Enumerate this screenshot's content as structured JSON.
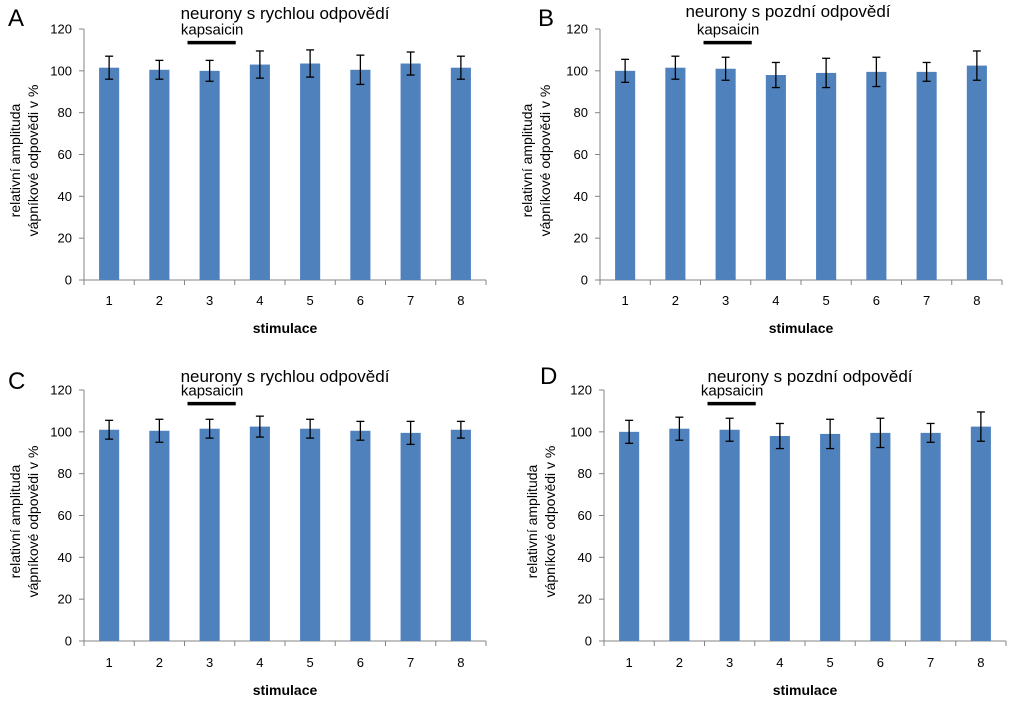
{
  "figure": {
    "bar_color": "#4F81BD",
    "axis_color": "#868686",
    "error_color": "#000000"
  },
  "chart_data": [
    {
      "letter": "A",
      "type": "bar",
      "title": "neurony s rychlou odpovědí",
      "xlabel": "stimulace",
      "ylabel_line1": "relativní amplituda",
      "ylabel_line2": "vápníkové odpovědi v  %",
      "annotation": "kapsaicin",
      "annotation_category": "3",
      "ylim": [
        0,
        120
      ],
      "yticks": [
        0,
        20,
        40,
        60,
        80,
        100,
        120
      ],
      "ytick_labels": [
        "0",
        "20",
        "40",
        "60",
        "80",
        "100",
        "120"
      ],
      "categories": [
        "1",
        "2",
        "3",
        "4",
        "5",
        "6",
        "7",
        "8"
      ],
      "values": [
        101.5,
        100.5,
        100,
        103,
        103.5,
        100.5,
        103.5,
        101.5
      ],
      "errors": [
        5.5,
        4.5,
        5,
        6.5,
        6.5,
        7,
        5.5,
        5.5
      ]
    },
    {
      "letter": "B",
      "type": "bar",
      "title": "neurony s pozdní odpovědí",
      "xlabel": "stimulace",
      "ylabel_line1": "relativní amplituda",
      "ylabel_line2": "vápníkové odpovědi v  %",
      "annotation": "kapsaicin",
      "annotation_category": "3",
      "ylim": [
        0,
        120
      ],
      "yticks": [
        0,
        20,
        40,
        60,
        80,
        100,
        120
      ],
      "ytick_labels": [
        "0",
        "20",
        "40",
        "60",
        "80",
        "100",
        "120"
      ],
      "categories": [
        "1",
        "2",
        "3",
        "4",
        "5",
        "6",
        "7",
        "8"
      ],
      "values": [
        100,
        101.5,
        101,
        98,
        99,
        99.5,
        99.5,
        102.5
      ],
      "errors": [
        5.5,
        5.5,
        5.5,
        6,
        7,
        7,
        4.5,
        7
      ]
    },
    {
      "letter": "C",
      "type": "bar",
      "title": "neurony s rychlou odpovědí",
      "xlabel": "stimulace",
      "ylabel_line1": "relativní amplituda",
      "ylabel_line2": "vápníkové odpovědi v  %",
      "annotation": "kapsaicin",
      "annotation_category": "3",
      "ylim": [
        0,
        120
      ],
      "yticks": [
        0,
        20,
        40,
        60,
        80,
        100,
        120
      ],
      "ytick_labels": [
        "0",
        "20",
        "40",
        "60",
        "80",
        "100",
        "120"
      ],
      "categories": [
        "1",
        "2",
        "3",
        "4",
        "5",
        "6",
        "7",
        "8"
      ],
      "values": [
        101,
        100.5,
        101.5,
        102.5,
        101.5,
        100.5,
        99.5,
        101
      ],
      "errors": [
        4.5,
        5.5,
        4.5,
        5,
        4.5,
        4.5,
        5.5,
        4
      ]
    },
    {
      "letter": "D",
      "type": "bar",
      "title": "neurony s pozdní odpovědí",
      "xlabel": "stimulace",
      "ylabel_line1": "relativní amplituda",
      "ylabel_line2": "vápníkové odpovědi v  %",
      "annotation": "kapsaicin",
      "annotation_category": "3",
      "ylim": [
        0,
        120
      ],
      "yticks": [
        0,
        20,
        40,
        60,
        80,
        100,
        120
      ],
      "ytick_labels": [
        "0",
        "20",
        "40",
        "60",
        "80",
        "100",
        "120"
      ],
      "categories": [
        "1",
        "2",
        "3",
        "4",
        "5",
        "6",
        "7",
        "8"
      ],
      "values": [
        100,
        101.5,
        101,
        98,
        99,
        99.5,
        99.5,
        102.5
      ],
      "errors": [
        5.5,
        5.5,
        5.5,
        6,
        7,
        7,
        4.5,
        7
      ]
    }
  ]
}
